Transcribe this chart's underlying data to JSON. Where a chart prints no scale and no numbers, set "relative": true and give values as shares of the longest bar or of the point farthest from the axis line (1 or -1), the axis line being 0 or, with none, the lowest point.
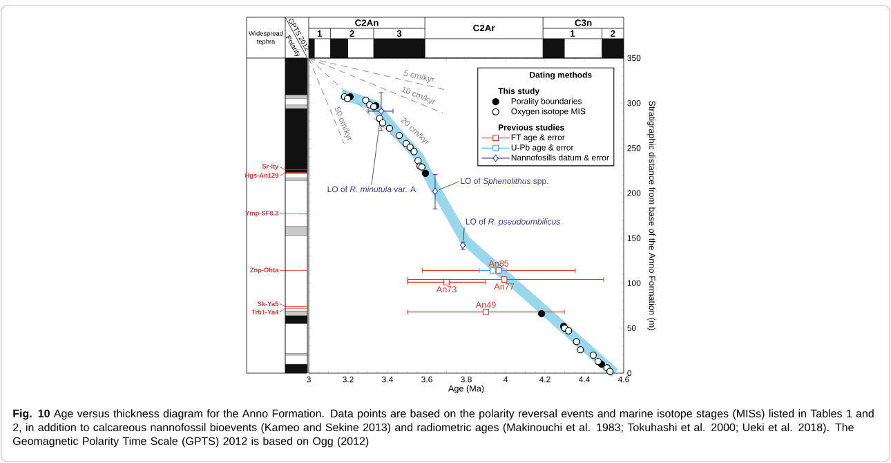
{
  "chart_data": [
    {
      "type": "area",
      "relative": true,
      "xlim": [
        3.0,
        4.6
      ],
      "ref_lines": [
        {
          "axis": "x",
          "value": 3.11
        },
        {
          "axis": "x",
          "value": 3.33
        },
        {
          "axis": "x",
          "value": 3.59
        },
        {
          "axis": "x",
          "value": 4.19
        },
        {
          "axis": "x",
          "value": 4.49
        }
      ],
      "annotations": [
        "C2An",
        "1",
        "2",
        "3",
        "C2Ar",
        "C3n",
        "1",
        "2"
      ],
      "series": [
        {
          "color": "#111111",
          "x": [
            3.0,
            3.03,
            3.03,
            3.11,
            3.11,
            3.2,
            3.2,
            3.33,
            3.33,
            3.59,
            3.59,
            4.19,
            4.19,
            4.3,
            4.3,
            4.49,
            4.49,
            4.6
          ],
          "values": [
            1,
            1,
            0,
            0,
            1,
            1,
            0,
            0,
            1,
            1,
            0,
            0,
            1,
            1,
            0,
            0,
            1,
            1
          ]
        }
      ]
    },
    {
      "type": "bar",
      "stacked": true,
      "categories": [
        null
      ],
      "ylim": [
        0,
        350
      ],
      "tick_labels": false,
      "title": "Polarity",
      "subtitle": "GPTS 2012",
      "annotations": [
        "Widespread tephra"
      ],
      "series": [
        {
          "color": "#111111",
          "values": [
            10
          ]
        },
        {
          "color": "#ffffff",
          "values": [
            10
          ]
        },
        {
          "color": "#c8c8c8",
          "values": [
            2
          ]
        },
        {
          "color": "#ffffff",
          "values": [
            33
          ]
        },
        {
          "color": "#111111",
          "values": [
            9
          ]
        },
        {
          "color": "#c8c8c8",
          "values": [
            5
          ]
        },
        {
          "color": "#ffffff",
          "values": [
            84
          ]
        },
        {
          "color": "#c8c8c8",
          "values": [
            10
          ]
        },
        {
          "color": "#ffffff",
          "values": [
            51
          ]
        },
        {
          "color": "#c8c8c8",
          "values": [
            3
          ]
        },
        {
          "color": "#ffffff",
          "values": [
            5
          ]
        },
        {
          "color": "#111111",
          "values": [
            72
          ]
        },
        {
          "color": "#c8c8c8",
          "values": [
            4
          ]
        },
        {
          "color": "#ffffff",
          "values": [
            7
          ]
        },
        {
          "color": "#c8c8c8",
          "values": [
            4
          ]
        },
        {
          "color": "#111111",
          "values": [
            41
          ]
        }
      ],
      "ref_lines": [
        {
          "axis": "y",
          "value": 226,
          "label": "Sr-Ity",
          "color": "#e8302a"
        },
        {
          "axis": "y",
          "value": 223,
          "label": "Hgs-An129",
          "color": "#e8302a"
        },
        {
          "axis": "y",
          "value": 177,
          "label": "Ymp-SF8.3",
          "color": "#e8302a"
        },
        {
          "axis": "y",
          "value": 114,
          "label": "Znp-Ohta",
          "color": "#e8302a"
        },
        {
          "axis": "y",
          "value": 74,
          "label": "Sk-Ya5",
          "color": "#e8302a"
        },
        {
          "axis": "y",
          "value": 72,
          "label": "Trb1-Ya4",
          "color": "#e8302a"
        }
      ]
    },
    {
      "type": "scatter",
      "xlim": [
        3.0,
        4.6
      ],
      "ylim": [
        0,
        350
      ],
      "xticks": [
        3,
        3.2,
        3.4,
        3.6,
        3.8,
        4,
        4.2,
        4.4,
        4.6
      ],
      "yticks": [
        0,
        50,
        100,
        150,
        200,
        250,
        300,
        350
      ],
      "xlabel": "Age (Ma)",
      "ylabel": "Stratigraphic distance from base of the Anno Formation (m)",
      "legend": "top right",
      "legend_title": "Dating methods",
      "series": [
        {
          "type": "line",
          "color": "#99d8ea",
          "line_style": "solid",
          "x": [
            3.165,
            3.22,
            3.33,
            3.44,
            3.56,
            3.63,
            3.793,
            4.555
          ],
          "values": [
            310,
            306,
            298,
            269,
            240,
            210,
            148,
            0
          ]
        },
        {
          "type": "line",
          "name": "5 cm/kyr",
          "color": "#808080",
          "line_style": "dashed",
          "x": [
            3.0,
            3.69
          ],
          "values": [
            350,
            315
          ]
        },
        {
          "type": "line",
          "name": "10 cm/kyr",
          "color": "#808080",
          "line_style": "dashed",
          "x": [
            3.0,
            3.68
          ],
          "values": [
            350,
            289
          ]
        },
        {
          "type": "line",
          "name": "20 cm/kyr",
          "color": "#808080",
          "line_style": "dashed",
          "x": [
            3.0,
            3.53
          ],
          "values": [
            350,
            243
          ]
        },
        {
          "type": "line",
          "name": "50 cm/kyr",
          "color": "#808080",
          "line_style": "dashed",
          "x": [
            3.0,
            3.18
          ],
          "values": [
            350,
            255
          ]
        },
        {
          "type": "scatter",
          "name": "Porality boundaries",
          "color": "#000000",
          "marker": "circle",
          "x": [
            3.21,
            3.34,
            3.593,
            4.183,
            4.295,
            4.487
          ],
          "values": [
            307,
            297,
            222,
            66,
            52,
            10
          ]
        },
        {
          "type": "scatter",
          "name": "Oxygen isotope MIS",
          "color": "#ffffff",
          "marker": "circle",
          "x": [
            3.182,
            3.197,
            3.29,
            3.31,
            3.33,
            3.36,
            3.375,
            3.41,
            3.46,
            3.495,
            3.515,
            3.535,
            3.555,
            3.565,
            3.575,
            4.3,
            4.32,
            4.36,
            4.38,
            4.445,
            4.47,
            4.515,
            4.53
          ],
          "values": [
            307,
            305,
            303,
            298,
            296,
            283,
            278,
            272,
            264,
            255,
            251,
            246,
            236,
            230,
            229,
            50,
            47,
            35,
            26,
            20,
            13,
            6,
            2
          ]
        },
        {
          "type": "scatter",
          "name": "FT age & error",
          "color": "#e2342b",
          "marker": "square",
          "x": [
            3.965,
            3.993,
            3.7,
            3.9
          ],
          "values": [
            114,
            104,
            101,
            68
          ],
          "xerrors": [
            [
              3.575,
              4.355
            ],
            [
              3.5,
              4.5
            ],
            [
              3.5,
              3.9
            ],
            [
              3.5,
              4.3
            ]
          ],
          "value_labels": [
            "An85",
            "An77",
            "An73",
            "An49"
          ]
        },
        {
          "type": "scatter",
          "name": "U-Pb age & error",
          "color": "#29abe2",
          "marker": "square",
          "x": [
            3.935
          ],
          "values": [
            114
          ],
          "xerrors": [
            [
              3.865,
              4.005
            ]
          ]
        },
        {
          "type": "scatter",
          "name": "Nannofosills datum & error",
          "color": "#3b3ba6",
          "marker": "diamond",
          "x": [
            3.368,
            3.642,
            3.783
          ],
          "values": [
            291,
            202,
            142
          ],
          "errors": [
            [
              269,
              312
            ],
            [
              182,
              221
            ],
            [
              137,
              146
            ]
          ],
          "xerrors": [
            [
              3.3,
              3.43
            ],
            null,
            null
          ]
        }
      ],
      "annotations": [
        "**Fig. 10** Age versus thickness diagram for the Anno Formation. Data points are based on the polarity reversal events and marine isotope stages (MISs) listed in Tables 1 and 2, in addition to calcareous nannofossil bioevents (Kameo and Sekine 2013) and radiometric ages (Makinouchi et al. 1983; Tokuhashi et al. 2000; Ueki et al. 2018). The Geomagnetic Polarity Time Scale (GPTS) 2012 is based on Ogg (2012)",
        "This study",
        "Previous studies",
        {
          "text": "LO of *R. minutula* var. A",
          "x": 3.368,
          "y": 291
        },
        {
          "text": "LO of *Sphenolithus* spp.",
          "x": 3.642,
          "y": 202
        },
        {
          "text": "LO of *R. pseudoumbilicus*",
          "x": 3.783,
          "y": 142
        }
      ]
    }
  ]
}
